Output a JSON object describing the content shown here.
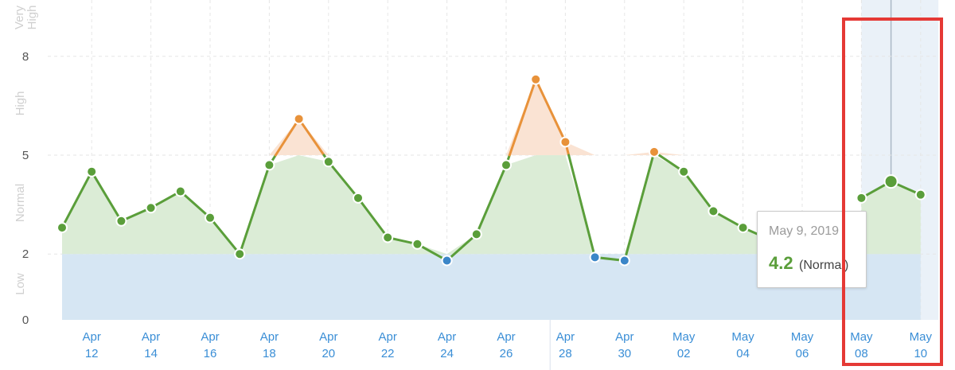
{
  "chart_data": {
    "type": "line",
    "title": "",
    "xlabel": "",
    "ylabel": "",
    "ylim": [
      0,
      8.5
    ],
    "yticks": [
      0,
      2,
      5,
      8
    ],
    "bands": [
      {
        "label": "Low",
        "from": 0,
        "to": 2,
        "color": "#d6e6f3"
      },
      {
        "label": "Normal",
        "from": 2,
        "to": 5,
        "color": "#dbecd6"
      },
      {
        "label": "High",
        "from": 5,
        "to": 8,
        "color": "#fae3d3"
      },
      {
        "label": "Very High",
        "from": 8,
        "to": 9,
        "color": "#ffffff"
      }
    ],
    "x": [
      "Apr 11",
      "Apr 12",
      "Apr 13",
      "Apr 14",
      "Apr 15",
      "Apr 16",
      "Apr 17",
      "Apr 18",
      "Apr 19",
      "Apr 20",
      "Apr 21",
      "Apr 22",
      "Apr 23",
      "Apr 24",
      "Apr 25",
      "Apr 26",
      "Apr 27",
      "Apr 28",
      "Apr 29",
      "Apr 30",
      "May 01",
      "May 02",
      "May 03",
      "May 04",
      "May 05",
      "May 06",
      "May 07",
      "May 08",
      "May 09",
      "May 10"
    ],
    "x_tick_labels": [
      {
        "top": "Apr",
        "bottom": "12"
      },
      {
        "top": "Apr",
        "bottom": "14"
      },
      {
        "top": "Apr",
        "bottom": "16"
      },
      {
        "top": "Apr",
        "bottom": "18"
      },
      {
        "top": "Apr",
        "bottom": "20"
      },
      {
        "top": "Apr",
        "bottom": "22"
      },
      {
        "top": "Apr",
        "bottom": "24"
      },
      {
        "top": "Apr",
        "bottom": "26"
      },
      {
        "top": "Apr",
        "bottom": "28"
      },
      {
        "top": "Apr",
        "bottom": "30"
      },
      {
        "top": "May",
        "bottom": "02"
      },
      {
        "top": "May",
        "bottom": "04"
      },
      {
        "top": "May",
        "bottom": "06"
      },
      {
        "top": "May",
        "bottom": "08"
      },
      {
        "top": "May",
        "bottom": "10"
      }
    ],
    "series": [
      {
        "values": [
          2.8,
          4.5,
          3.0,
          3.4,
          3.9,
          3.1,
          2.0,
          4.7,
          6.1,
          4.8,
          3.7,
          2.5,
          2.3,
          1.8,
          2.6,
          4.7,
          7.3,
          5.4,
          1.9,
          1.8,
          5.1,
          4.5,
          3.3,
          2.8,
          2.4,
          null,
          null,
          3.7,
          4.2,
          3.8
        ]
      }
    ],
    "colors": {
      "line_normal": "#5a9e3a",
      "point_normal": "#5a9e3a",
      "line_high": "#e8923a",
      "point_high": "#e8923a",
      "point_low": "#3b86c8",
      "grid": "#e6e6e6",
      "hover_band": "#e8eff7",
      "hover_line": "#aab8c6"
    },
    "hover_index": 28,
    "grid": true
  },
  "tooltip": {
    "date": "May 9, 2019",
    "value": "4.2",
    "level": "(Normal)"
  }
}
